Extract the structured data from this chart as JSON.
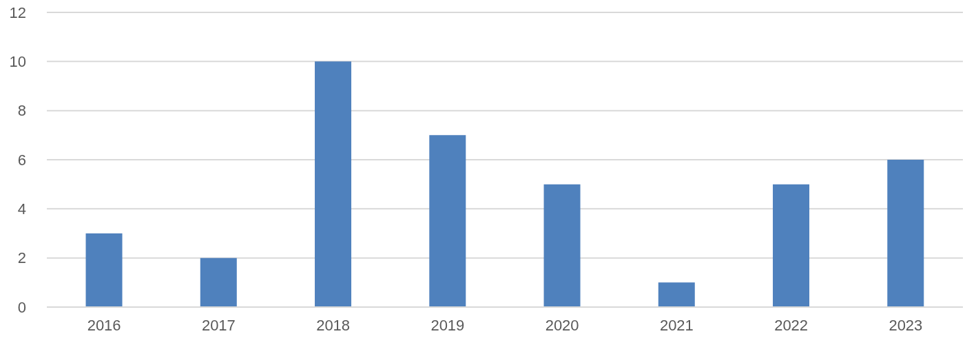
{
  "chart_data": {
    "type": "bar",
    "categories": [
      "2016",
      "2017",
      "2018",
      "2019",
      "2020",
      "2021",
      "2022",
      "2023"
    ],
    "values": [
      3,
      2,
      10,
      7,
      5,
      1,
      5,
      6
    ],
    "color": "#4f81bd",
    "ylim": [
      0,
      12
    ],
    "yticks": [
      0,
      2,
      4,
      6,
      8,
      10,
      12
    ],
    "grid": "y"
  }
}
